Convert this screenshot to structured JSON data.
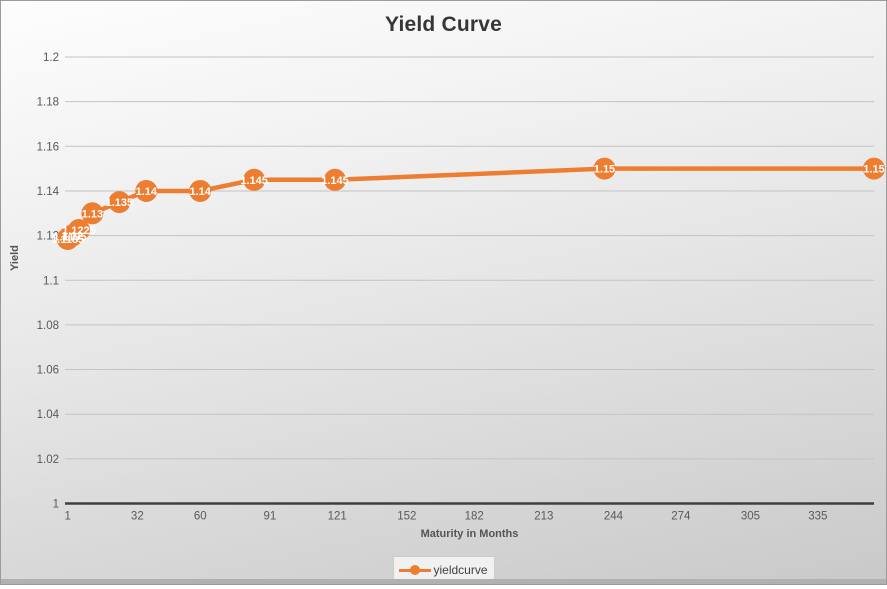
{
  "chart": {
    "title": "Yield Curve",
    "y_axis_title": "Yield",
    "x_axis_title": "Maturity in Months",
    "legend_label": "yieldcurve"
  },
  "chart_data": {
    "type": "line",
    "title": "Yield Curve",
    "xlabel": "Maturity in Months",
    "ylabel": "Yield",
    "legend_position": "bottom",
    "grid": true,
    "xlim": [
      1,
      360
    ],
    "ylim": [
      1,
      1.2
    ],
    "x_ticks": [
      1,
      32,
      60,
      91,
      121,
      152,
      182,
      213,
      244,
      274,
      305,
      335
    ],
    "y_tick_values": [
      1,
      1.02,
      1.04,
      1.06,
      1.08,
      1.1,
      1.12,
      1.14,
      1.16,
      1.18,
      1.2
    ],
    "y_tick_labels": [
      "1",
      "1.02",
      "1.04",
      "1.06",
      "1.08",
      "1.1",
      "1.12",
      "1.14",
      "1.16",
      "1.18",
      "1.2"
    ],
    "series": [
      {
        "name": "yieldcurve",
        "x": [
          1,
          2,
          3,
          6,
          12,
          24,
          36,
          60,
          84,
          120,
          240,
          360
        ],
        "y": [
          1.1185,
          1.1195,
          1.12,
          1.1225,
          1.13,
          1.135,
          1.14,
          1.14,
          1.145,
          1.145,
          1.15,
          1.15
        ],
        "point_labels": [
          "1.1185",
          "1.1195",
          "1.12",
          "1.1225",
          "1.13",
          "1.135",
          "1.14",
          "1.14",
          "1.145",
          "1.145",
          "1.15",
          "1.15"
        ]
      }
    ],
    "colors": {
      "series_line": "#ED7D31",
      "marker_fill": "#ED7D31",
      "data_label": "#ffffff",
      "gridline": "#c3c3c3",
      "axis_line": "#3f3f3f",
      "tick_label": "#595959"
    }
  }
}
